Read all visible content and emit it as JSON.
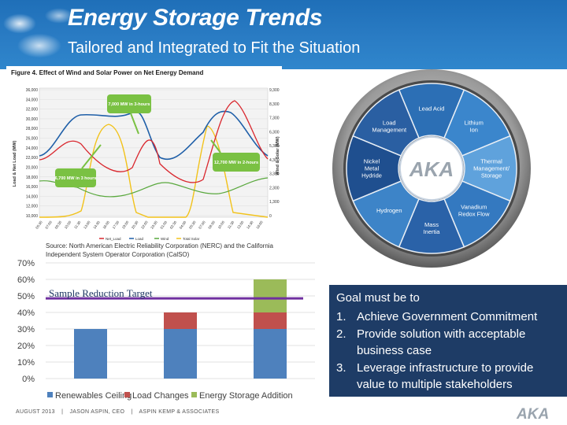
{
  "slide": {
    "title": "Energy Storage Trends",
    "subtitle": "Tailored and Integrated to Fit the Situation"
  },
  "figure": {
    "title": "Figure 4. Effect of Wind and Solar Power on Net Energy Demand",
    "left_axis_label": "Load & Net Load (MW)",
    "right_axis_label": "Wind & Solar (MW)",
    "left_ticks": [
      "36,000",
      "34,000",
      "32,000",
      "30,000",
      "28,000",
      "26,000",
      "24,000",
      "22,000",
      "20,000",
      "18,000",
      "16,000",
      "14,000",
      "12,000",
      "10,000"
    ],
    "right_ticks": [
      "9,300",
      "8,300",
      "7,300",
      "6,300",
      "5,300",
      "4,300",
      "3,300",
      "2,300",
      "1,300",
      "0"
    ],
    "x_ticks": [
      "05:30",
      "07:00",
      "08:30",
      "10:00",
      "11:30",
      "13:00",
      "14:30",
      "16:00",
      "17:30",
      "19:00",
      "20:30",
      "22:00",
      "23:30",
      "01:00",
      "02:30",
      "04:00",
      "05:30",
      "07:00",
      "08:30",
      "10:00",
      "11:30",
      "13:00",
      "14:30",
      "16:00"
    ],
    "callouts": [
      "7,000 MW in 3-hours",
      "6,700 MW in 3 hours",
      "12,700 MW in 2-hours"
    ],
    "legend": [
      "Net_Load",
      "Load",
      "Wind",
      "Total Solar"
    ],
    "colors": {
      "net_load": "#d9272e",
      "load": "#1f5fa8",
      "wind": "#59a83d",
      "solar": "#f2c21a",
      "callout": "#7ac143"
    }
  },
  "wheel": {
    "segments": [
      "Lead Acid",
      "Lithium Ion",
      "Thermal Management/ Storage",
      "Vanadium Redox Flow",
      "Mass Inertia",
      "Hydrogen",
      "Nickel Metal Hydride",
      "Load Management"
    ],
    "center_logo": "AKA"
  },
  "source_note": "Source: North American Electric Reliability Corporation (NERC) and the California Independent System Operator Corporation (CalSO)",
  "chart_data": {
    "type": "bar",
    "stacked": true,
    "categories": [
      "Renewables Ceiling",
      "Load Changes",
      "Energy Storage Addition"
    ],
    "series": [
      {
        "name": "Renewables Ceiling",
        "color": "#4e81bd",
        "values": [
          30,
          30,
          30
        ]
      },
      {
        "name": "Load Changes",
        "color": "#c0504d",
        "values": [
          0,
          10,
          10
        ]
      },
      {
        "name": "Energy Storage Addition",
        "color": "#9bbb59",
        "values": [
          0,
          0,
          20
        ]
      }
    ],
    "ylim": [
      0,
      70
    ],
    "yticks": [
      "0%",
      "10%",
      "20%",
      "30%",
      "40%",
      "50%",
      "60%",
      "70%"
    ],
    "target_label": "Sample Reduction Target",
    "target_value": 48.5,
    "target_color": "#7030a0",
    "legend_placement": "bottom"
  },
  "goal": {
    "heading": "Goal must be to",
    "items": [
      {
        "num": "1.",
        "text": "Achieve Government Commitment"
      },
      {
        "num": "2.",
        "text": "Provide solution with acceptable business case"
      },
      {
        "num": "3.",
        "text": "Leverage infrastructure to provide value to multiple stakeholders"
      }
    ]
  },
  "footer": {
    "date": "AUGUST 2013",
    "sep": "|",
    "author": "JASON ASPIN, CEO",
    "company": "ASPIN KEMP & ASSOCIATES"
  },
  "logo": "AKA"
}
